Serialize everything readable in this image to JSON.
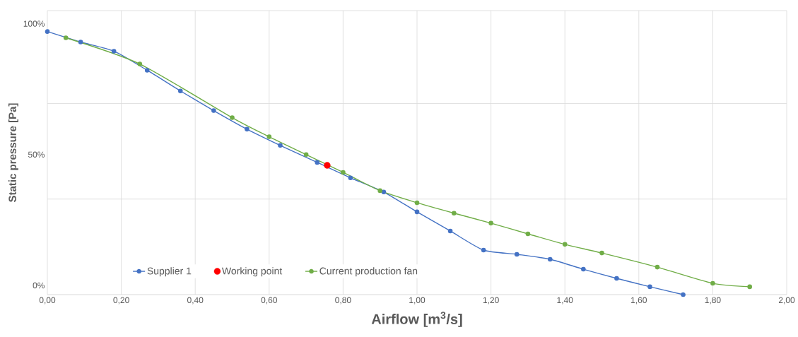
{
  "chart_data": {
    "type": "line",
    "xlabel": "Airflow [m$^{3}$/s]",
    "ylabel": "Static pressure [Pa]",
    "xlim": [
      0,
      2
    ],
    "ylim": [
      -3.5,
      105
    ],
    "xticks": [
      {
        "value": 0,
        "label": "0,00"
      },
      {
        "value": 0.2,
        "label": "0,20"
      },
      {
        "value": 0.4,
        "label": "0,40"
      },
      {
        "value": 0.6,
        "label": "0,60"
      },
      {
        "value": 0.8,
        "label": "0,80"
      },
      {
        "value": 1.0,
        "label": "1,00"
      },
      {
        "value": 1.2,
        "label": "1,20"
      },
      {
        "value": 1.4,
        "label": "1,40"
      },
      {
        "value": 1.6,
        "label": "1,60"
      },
      {
        "value": 1.8,
        "label": "1,80"
      },
      {
        "value": 2.0,
        "label": "2,00"
      }
    ],
    "yticks": [
      {
        "value": 0,
        "label": "0%"
      },
      {
        "value": 33,
        "label": null
      },
      {
        "value": 50,
        "label": "50%"
      },
      {
        "value": 69.5,
        "label": null
      },
      {
        "value": 100,
        "label": "100%"
      },
      {
        "value": 105,
        "label": null
      }
    ],
    "grid": true,
    "legend": "bottom",
    "marker": "circle",
    "line_style": "solid",
    "series": [
      {
        "name": "Supplier 1",
        "color": "#4472c4",
        "x": [
          0,
          0.09,
          0.18,
          0.27,
          0.36,
          0.45,
          0.54,
          0.63,
          0.73,
          0.82,
          0.91,
          1.0,
          1.09,
          1.18,
          1.27,
          1.36,
          1.45,
          1.54,
          1.63,
          1.72
        ],
        "values": [
          97.0,
          93.0,
          89.5,
          82.2,
          74.3,
          66.8,
          59.7,
          53.5,
          47.0,
          41.1,
          35.7,
          28.1,
          20.8,
          13.5,
          11.9,
          10.0,
          6.2,
          2.7,
          -0.5,
          -3.5
        ]
      },
      {
        "name": "Working point",
        "type": "scatter",
        "color": "#ff0000",
        "x": [
          0.757
        ],
        "values": [
          45.9
        ]
      },
      {
        "name": "Current production fan",
        "color": "#70ad47",
        "x": [
          0.05,
          0.25,
          0.5,
          0.6,
          0.7,
          0.8,
          0.9,
          1.0,
          1.1,
          1.2,
          1.3,
          1.4,
          1.5,
          1.65,
          1.8,
          1.9
        ],
        "values": [
          94.6,
          84.6,
          64.1,
          56.8,
          50.0,
          43.2,
          36.2,
          31.6,
          27.6,
          23.8,
          19.7,
          15.7,
          12.4,
          7.0,
          0.8,
          -0.5
        ]
      }
    ]
  }
}
